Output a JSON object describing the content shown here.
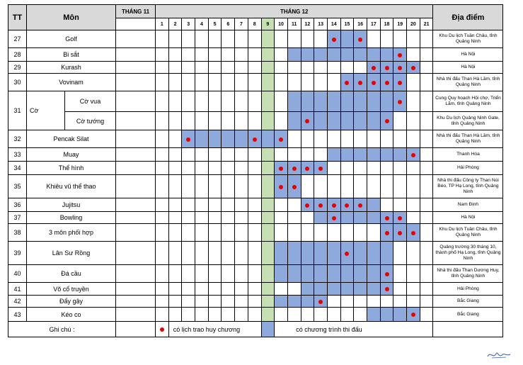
{
  "headers": {
    "tt": "TT",
    "mon": "Môn",
    "month11": "THÁNG 11",
    "month12": "THÁNG 12",
    "location": "Địa điểm"
  },
  "days": [
    "1",
    "2",
    "3",
    "4",
    "5",
    "6",
    "7",
    "8",
    "9",
    "10",
    "11",
    "12",
    "13",
    "14",
    "15",
    "16",
    "17",
    "18",
    "19",
    "20",
    "21"
  ],
  "colors": {
    "competition": "#8ea9db",
    "opening_day": "#c6e0b4",
    "medal_dot": "#e60000",
    "header_bg": "#d9d9d9"
  },
  "rows": [
    {
      "tt": "27",
      "name": "Golf",
      "location": "Khu Du lịch Tuần Châu, tỉnh Quảng Ninh",
      "blue": [
        14,
        16
      ],
      "dots": [
        14,
        16
      ]
    },
    {
      "tt": "28",
      "name": "Bi sắt",
      "location": "Hà Nội",
      "blue": [
        11,
        19
      ],
      "dots": [
        19
      ]
    },
    {
      "tt": "29",
      "name": "Kurash",
      "location": "Hà Nội",
      "blue": [
        17,
        20
      ],
      "dots": [
        17,
        18,
        19,
        20
      ]
    },
    {
      "tt": "30",
      "name": "Vovinam",
      "location": "Nhà thi đấu Than Hà Lầm, tỉnh Quảng Ninh",
      "blue": [
        15,
        19
      ],
      "dots": [
        15,
        16,
        17,
        18,
        19
      ]
    },
    {
      "tt": "31",
      "name": "Cờ",
      "sub": "Cờ vua",
      "location": "Cung Quy hoạch Hội chợ, Triển Lãm, tỉnh Quảng Ninh",
      "blue": [
        11,
        19
      ],
      "dots": [
        19
      ]
    },
    {
      "tt": "",
      "name": "",
      "sub": "Cờ tướng",
      "location": "Khu Du lịch Quảng Ninh Gate, tỉnh Quảng Ninh",
      "blue": [
        11,
        18
      ],
      "dots": [
        12,
        18
      ]
    },
    {
      "tt": "32",
      "name": "Pencak Silat",
      "location": "Nhà thi đấu Than Hà Lầm, tỉnh Quảng Ninh",
      "blue": [
        3,
        10
      ],
      "dots": [
        3,
        8,
        10
      ]
    },
    {
      "tt": "33",
      "name": "Muay",
      "location": "Thanh Hóa",
      "blue": [
        14,
        20
      ],
      "dots": [
        20
      ]
    },
    {
      "tt": "34",
      "name": "Thể hình",
      "location": "Hải Phòng",
      "blue": [
        10,
        13
      ],
      "dots": [
        10,
        11,
        12,
        13
      ]
    },
    {
      "tt": "35",
      "name": "Khiêu vũ thể thao",
      "location": "Nhà thi đấu Công ty Than Núi Béo, TP Hạ Long, tỉnh Quảng Ninh",
      "blue": [
        10,
        11
      ],
      "dots": [
        10,
        11
      ]
    },
    {
      "tt": "36",
      "name": "Jujitsu",
      "location": "Nam Định",
      "blue": [
        12,
        17
      ],
      "dots": [
        12,
        13,
        14,
        15,
        16
      ]
    },
    {
      "tt": "37",
      "name": "Bowling",
      "location": "Hà Nội",
      "blue": [
        13,
        19
      ],
      "dots": [
        14,
        18,
        19
      ]
    },
    {
      "tt": "38",
      "name": "3 môn phối hợp",
      "location": "Khu Du lịch Tuần Châu, tỉnh Quảng Ninh",
      "blue": [
        18,
        20
      ],
      "dots": [
        18,
        19,
        20
      ]
    },
    {
      "tt": "39",
      "name": "Lân Sư Rồng",
      "location": "Quảng trường 30 tháng 10, thành phố Hạ Long, tỉnh Quảng Ninh",
      "blue": [
        10,
        18
      ],
      "dots": [
        15
      ]
    },
    {
      "tt": "40",
      "name": "Đá cầu",
      "location": "Nhà thi đấu Than Dương Huy, tỉnh Quảng Ninh",
      "blue": [
        10,
        18
      ],
      "dots": [
        18
      ]
    },
    {
      "tt": "41",
      "name": "Võ cổ truyền",
      "location": "Hải Phòng",
      "blue": [
        12,
        18
      ],
      "dots": [
        18
      ]
    },
    {
      "tt": "42",
      "name": "Đẩy gậy",
      "location": "Bắc Giang",
      "blue": [
        10,
        13
      ],
      "dots": [
        13
      ]
    },
    {
      "tt": "43",
      "name": "Kéo co",
      "location": "Bắc Giang",
      "blue": [
        17,
        20
      ],
      "dots": [
        20
      ]
    }
  ],
  "legend": {
    "label": "Ghi chú :",
    "medal": "có lịch trao huy chương",
    "competition": "có chương trình thi đấu"
  }
}
